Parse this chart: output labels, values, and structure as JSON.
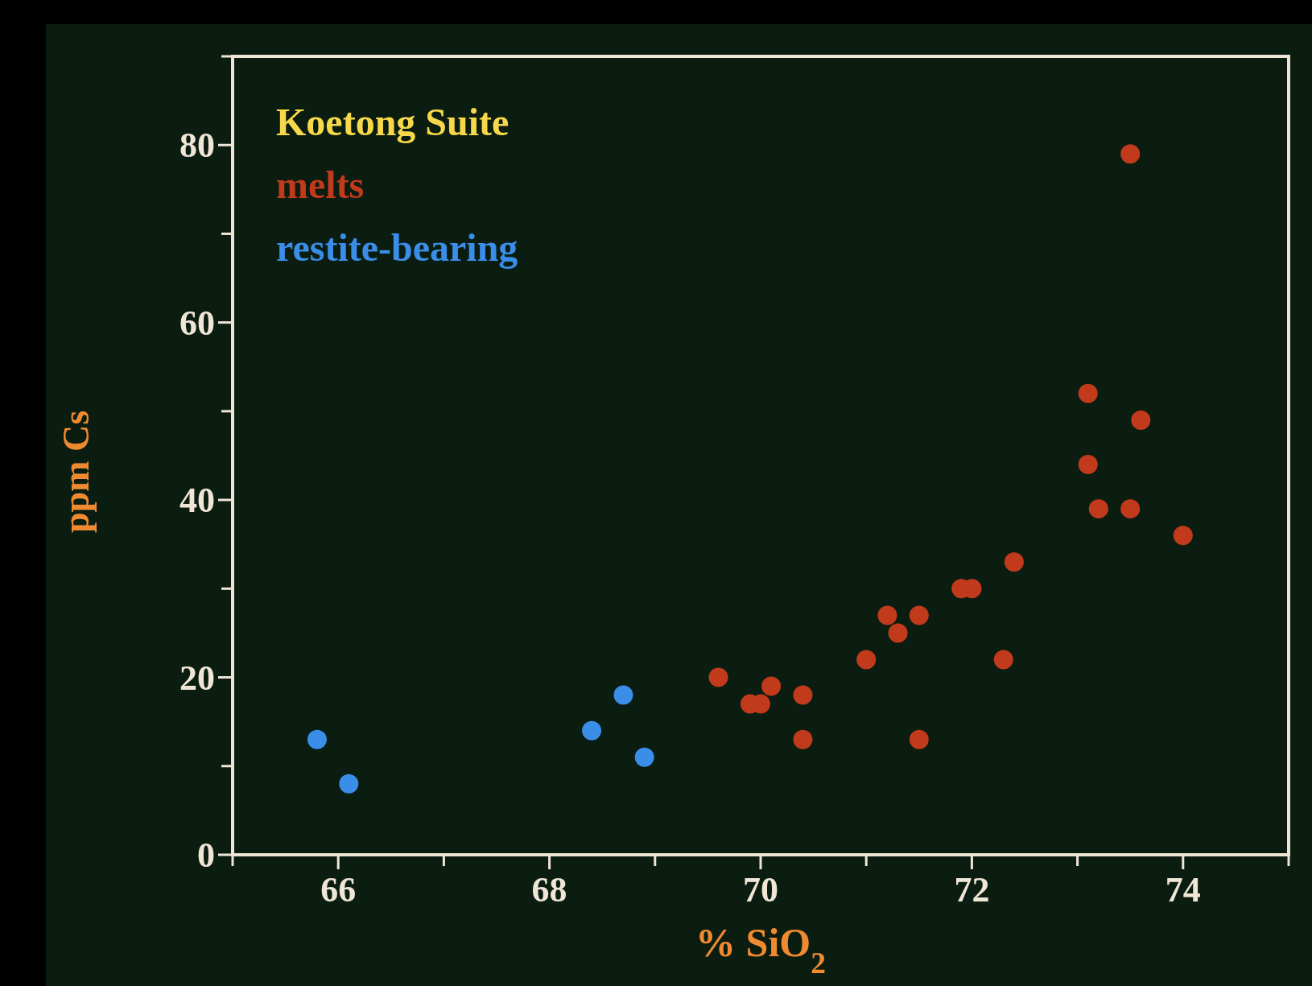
{
  "chart_data": {
    "type": "scatter",
    "legend_title": "Koetong Suite",
    "xlabel": "% SiO$_{2}$",
    "ylabel": "ppm Cs",
    "xlim": [
      65,
      75
    ],
    "ylim": [
      0,
      90
    ],
    "xticks": [
      {
        "value": 65,
        "label": null
      },
      {
        "value": 66,
        "label": "66"
      },
      {
        "value": 67,
        "label": null
      },
      {
        "value": 68,
        "label": "68"
      },
      {
        "value": 69,
        "label": null
      },
      {
        "value": 70,
        "label": "70"
      },
      {
        "value": 71,
        "label": null
      },
      {
        "value": 72,
        "label": "72"
      },
      {
        "value": 73,
        "label": null
      },
      {
        "value": 74,
        "label": "74"
      },
      {
        "value": 75,
        "label": null
      }
    ],
    "yticks": [
      0,
      {
        "value": 10,
        "label": null
      },
      20,
      {
        "value": 30,
        "label": null
      },
      40,
      {
        "value": 50,
        "label": null
      },
      60,
      {
        "value": 70,
        "label": null
      },
      80,
      {
        "value": 90,
        "label": null
      }
    ],
    "legend": "top left",
    "marker": "circle",
    "grid": false,
    "series": [
      {
        "name": "melts",
        "color": "#c23a1c",
        "x": [
          73.5,
          73.1,
          73.6,
          73.1,
          73.2,
          73.5,
          74.0,
          72.4,
          71.9,
          72.0,
          71.2,
          71.5,
          71.3,
          71.0,
          72.3,
          69.6,
          70.1,
          70.4,
          69.9,
          70.0,
          70.4,
          71.5
        ],
        "values": [
          79,
          52,
          49,
          44,
          39,
          39,
          36,
          33,
          30,
          30,
          27,
          27,
          25,
          22,
          22,
          20,
          19,
          18,
          17,
          17,
          13,
          13
        ]
      },
      {
        "name": "restite-bearing",
        "color": "#3a8ee8",
        "x": [
          65.8,
          66.1,
          68.4,
          68.7,
          68.9
        ],
        "values": [
          13,
          8,
          14,
          18,
          11
        ]
      }
    ]
  }
}
